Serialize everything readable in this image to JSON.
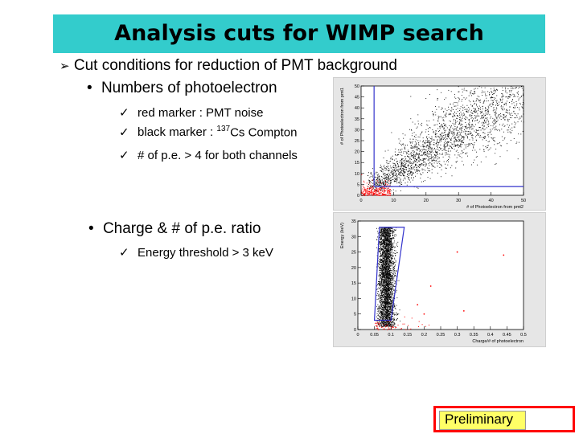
{
  "title": "Analysis cuts for WIMP search",
  "bullets": {
    "main": "Cut conditions for reduction of PMT background",
    "sub1": "Numbers of photoelectron",
    "sub1_items": [
      "red marker : PMT noise",
      "black marker : ",
      "137",
      "Cs Compton",
      "# of p.e. > 4  for both channels"
    ],
    "sub2": "Charge & # of p.e. ratio",
    "sub2_items": [
      "Energy threshold > 3 keV"
    ]
  },
  "icons": {
    "main": "arrow-bullet-icon",
    "sub": "dot-bullet-icon",
    "item": "check-icon"
  },
  "colors": {
    "title_bg": "#33cccc",
    "cut_line": "#3333cc",
    "noise": "#ff0000",
    "compton": "#000000",
    "badge_border": "#ff0000",
    "badge_bg": "#ffff66"
  },
  "chart_data": [
    {
      "type": "scatter",
      "xlabel": "# of Photoelectron from pmt2",
      "ylabel": "# of Photoelectron from pmt1",
      "xlim": [
        0,
        50
      ],
      "ylim": [
        0,
        50
      ],
      "xticks": [
        "0",
        "10",
        "20",
        "30",
        "40",
        "50"
      ],
      "yticks": [
        "0",
        "5",
        "10",
        "15",
        "20",
        "25",
        "30",
        "35",
        "40",
        "45",
        "50"
      ],
      "cut": {
        "x_min": 4,
        "y_min": 4
      },
      "series": [
        {
          "color": "#000000",
          "trend_slope": 1.0
        },
        {
          "color": "#ff0000",
          "x_range": [
            0,
            10
          ],
          "y_range": [
            0,
            8
          ]
        }
      ]
    },
    {
      "type": "scatter",
      "xlabel": "Charge/# of photoelectron",
      "ylabel": "Energy (keV)",
      "xlim": [
        0,
        0.5
      ],
      "ylim": [
        0,
        35
      ],
      "xticks": [
        "0",
        "0.05",
        "0.1",
        "0.15",
        "0.2",
        "0.25",
        "0.3",
        "0.35",
        "0.4",
        "0.45",
        "0.5"
      ],
      "yticks": [
        "0",
        "5",
        "10",
        "15",
        "20",
        "25",
        "30",
        "35"
      ],
      "cut": {
        "energy_min": 3,
        "band": [
          [
            0.05,
            3
          ],
          [
            0.1,
            3
          ],
          [
            0.14,
            33
          ],
          [
            0.065,
            33
          ]
        ]
      },
      "series": [
        {
          "color": "#000000",
          "x_range": [
            0.06,
            0.12
          ],
          "y_range": [
            1,
            33
          ]
        },
        {
          "color": "#ff0000",
          "x_range": [
            0.05,
            0.45
          ],
          "y_range": [
            0,
            25
          ]
        }
      ]
    }
  ],
  "badge": "Preliminary"
}
